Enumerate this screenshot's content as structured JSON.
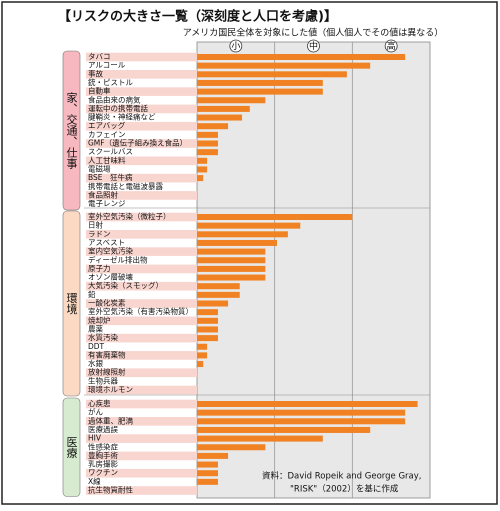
{
  "chart_data": {
    "type": "bar",
    "orientation": "horizontal",
    "title": "【リスクの大きさ一覧（深刻度と人口を考慮)】",
    "subtitle": "アメリカ国民全体を対象にした値（個人個人でその値は異なる）",
    "color": "#f08224",
    "xlim": [
      0,
      3
    ],
    "xticks": [
      {
        "value": 0.5,
        "label": "小"
      },
      {
        "value": 1.5,
        "label": "中"
      },
      {
        "value": 2.5,
        "label": "高"
      }
    ],
    "grid_lines": [
      1,
      2
    ],
    "groups": [
      {
        "name": "家、交通、仕事",
        "color": "#f7b8bf",
        "categories": [
          "タバコ",
          "アルコール",
          "事故",
          "銃・ピストル",
          "自動車",
          "食品由来の病気",
          "運転中の携帯電話",
          "腱鞘炎・神経痛など",
          "エアバッグ",
          "カフェイン",
          "GMF（遺伝子組み換え食品）",
          "スクールバス",
          "人工甘味料",
          "電磁場",
          "BSE　狂牛病",
          "携帯電話と電磁波暴露",
          "食品照射",
          "電子レンジ"
        ],
        "values": [
          2.68,
          2.23,
          1.93,
          1.62,
          1.62,
          0.88,
          0.68,
          0.58,
          0.4,
          0.27,
          0.27,
          0.27,
          0.13,
          0.13,
          0.08,
          null,
          null,
          null
        ]
      },
      {
        "name": "環境",
        "color": "#fbd9c2",
        "categories": [
          "室外空気汚染（微粒子）",
          "日射",
          "ラドン",
          "アスベスト",
          "室内空気汚染",
          "ディーゼル排出物",
          "原子力",
          "オゾン層破壊",
          "大気汚染（スモッグ）",
          "鉛",
          "一酸化炭素",
          "室外空気汚染（有害汚染物質）",
          "焼却炉",
          "農薬",
          "水質汚染",
          "DDT",
          "有害廃棄物",
          "水銀",
          "放射線照射",
          "生物兵器",
          "環境ホルモン"
        ],
        "values": [
          2.0,
          1.33,
          1.17,
          1.03,
          0.88,
          0.88,
          0.88,
          0.88,
          0.55,
          0.55,
          0.4,
          0.27,
          0.27,
          0.27,
          0.27,
          0.13,
          0.13,
          0.08,
          null,
          null,
          null
        ]
      },
      {
        "name": "医療",
        "color": "#d6ebcf",
        "categories": [
          "心疾患",
          "がん",
          "過体重、肥満",
          "医療過誤",
          "HIV",
          "性感染症",
          "豊胸手術",
          "乳房撮影",
          "ワクチン",
          "X線",
          "抗生物質耐性"
        ],
        "values": [
          2.84,
          2.68,
          2.68,
          2.23,
          1.62,
          0.88,
          0.4,
          0.27,
          0.27,
          0.27,
          null
        ]
      }
    ],
    "source": [
      "資料：David Ropeik and George Gray,",
      "\"RISK\"（2002）を基に作成"
    ]
  }
}
